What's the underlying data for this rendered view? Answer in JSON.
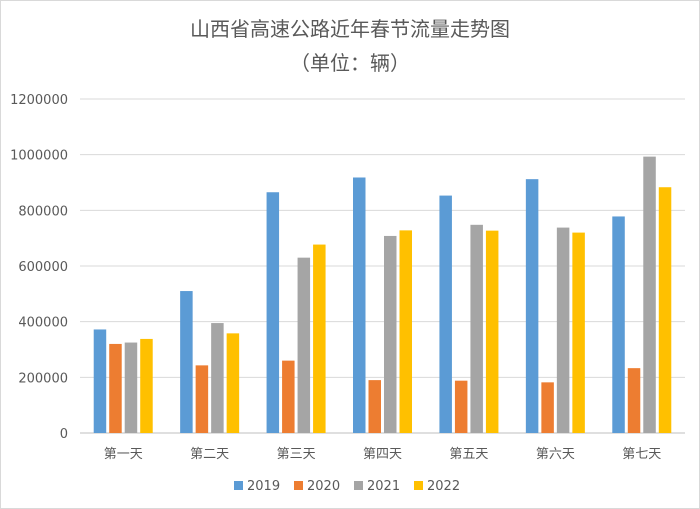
{
  "chart_data": {
    "type": "bar",
    "title": "山西省高速公路近年春节流量走势图",
    "subtitle": "（单位：辆）",
    "categories": [
      "第一天",
      "第二天",
      "第三天",
      "第四天",
      "第五天",
      "第六天",
      "第七天"
    ],
    "series": [
      {
        "name": "2019",
        "color": "#5b9bd5",
        "values": [
          372000,
          510000,
          865000,
          918000,
          853000,
          912000,
          778000
        ]
      },
      {
        "name": "2020",
        "color": "#ed7d31",
        "values": [
          320000,
          243000,
          260000,
          190000,
          188000,
          182000,
          233000
        ]
      },
      {
        "name": "2021",
        "color": "#a5a5a5",
        "values": [
          325000,
          395000,
          630000,
          708000,
          748000,
          738000,
          993000
        ]
      },
      {
        "name": "2022",
        "color": "#ffc000",
        "values": [
          338000,
          358000,
          677000,
          728000,
          727000,
          720000,
          883000
        ]
      }
    ],
    "ylim": [
      0,
      1200000
    ],
    "yticks": [
      "0",
      "200000",
      "400000",
      "600000",
      "800000",
      "1000000",
      "1200000"
    ],
    "grid": true,
    "legend_position": "bottom"
  }
}
